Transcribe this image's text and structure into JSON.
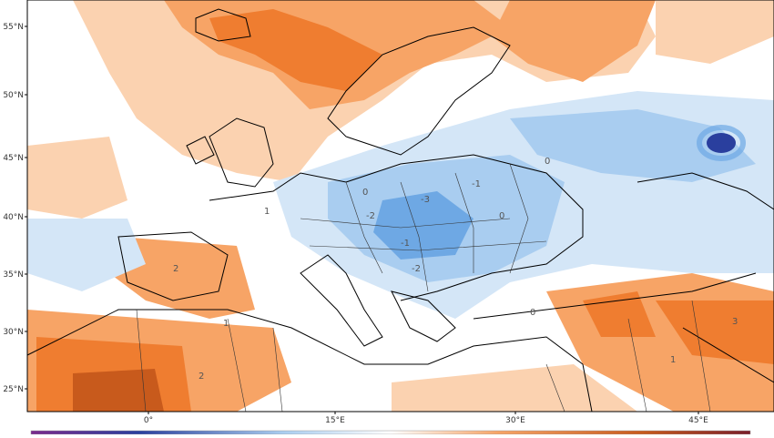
{
  "map": {
    "lat_labels": [
      "55°N",
      "50°N",
      "45°N",
      "40°N",
      "35°N",
      "30°N",
      "25°N"
    ],
    "lon_labels": [
      "0°",
      "15°E",
      "30°E",
      "45°E"
    ],
    "colors": {
      "warm_light": "#fbd2b0",
      "warm": "#f7a466",
      "warm_strong": "#ef7d30",
      "warm_dark": "#c85a1c",
      "cool_light": "#d4e6f7",
      "cool": "#a9cdf0",
      "cool_strong": "#6ea8e4",
      "cool_dark": "#2a3f9e",
      "coastline": "#000000"
    },
    "contour_labels": [
      "1",
      "0",
      "-1",
      "-2",
      "-3",
      "2",
      "3",
      "0",
      "-1",
      "0",
      "1",
      "0",
      "-2",
      "2",
      "1"
    ]
  },
  "colorbar": {
    "visible": true
  }
}
